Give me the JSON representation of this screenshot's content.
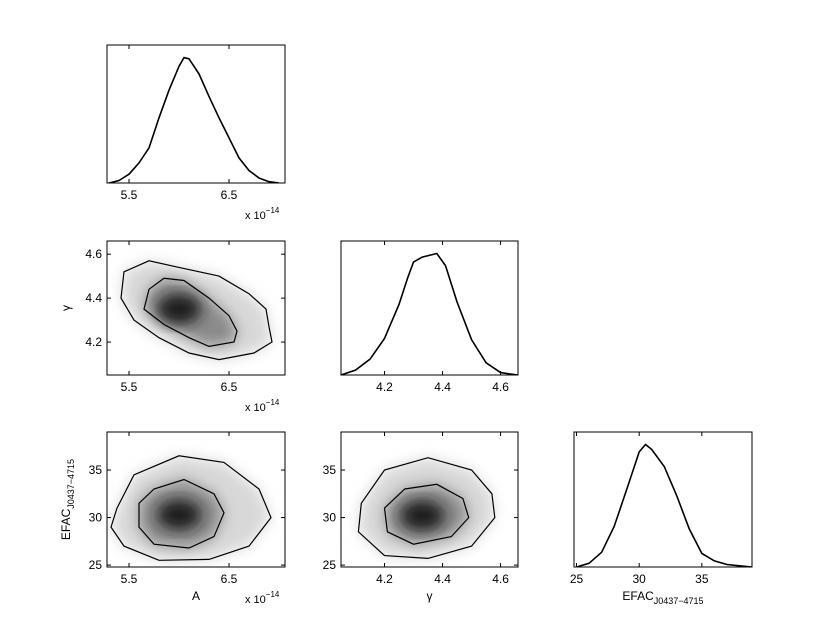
{
  "chart_data": [
    {
      "type": "line",
      "panel": "A-marginal",
      "x": [
        5.3,
        5.4,
        5.5,
        5.6,
        5.7,
        5.8,
        5.9,
        6.0,
        6.05,
        6.1,
        6.2,
        6.3,
        6.4,
        6.5,
        6.6,
        6.7,
        6.8,
        6.9,
        7.0
      ],
      "y": [
        0.0,
        0.02,
        0.07,
        0.16,
        0.28,
        0.52,
        0.74,
        0.93,
        1.0,
        0.99,
        0.87,
        0.69,
        0.52,
        0.36,
        0.2,
        0.1,
        0.04,
        0.01,
        0.0
      ],
      "xlim": [
        5.28,
        7.06
      ],
      "xticks": [
        "5.5",
        "6.5"
      ],
      "xscale_label": "x 10",
      "xscale_exp": "−14"
    },
    {
      "type": "line",
      "panel": "gamma-marginal",
      "x": [
        4.05,
        4.1,
        4.15,
        4.2,
        4.25,
        4.28,
        4.3,
        4.33,
        4.38,
        4.41,
        4.45,
        4.5,
        4.55,
        4.6,
        4.66
      ],
      "y": [
        0.0,
        0.04,
        0.13,
        0.3,
        0.58,
        0.8,
        0.93,
        0.97,
        1.0,
        0.9,
        0.6,
        0.29,
        0.1,
        0.02,
        0.0
      ],
      "xlim": [
        4.05,
        4.66
      ],
      "xticks": [
        "4.2",
        "4.4",
        "4.6"
      ]
    },
    {
      "type": "line",
      "panel": "EFAC-marginal",
      "x": [
        25,
        26,
        27,
        28,
        29,
        30,
        30.5,
        31,
        32,
        33,
        34,
        35,
        36,
        37,
        38,
        39
      ],
      "y": [
        0.0,
        0.03,
        0.12,
        0.33,
        0.63,
        0.94,
        1.0,
        0.96,
        0.82,
        0.58,
        0.31,
        0.11,
        0.05,
        0.02,
        0.01,
        0.0
      ],
      "xlim": [
        24.8,
        39.0
      ],
      "xticks": [
        "25",
        "30",
        "35"
      ],
      "xlabel": "EFAC",
      "xlabel_sub": "J0437−4715"
    },
    {
      "type": "heatmap",
      "panel": "A-vs-gamma",
      "xlim": [
        5.28,
        7.06
      ],
      "ylim": [
        4.05,
        4.66
      ],
      "xticks": [
        "5.5",
        "6.5"
      ],
      "yticks": [
        "4.2",
        "4.4",
        "4.6"
      ],
      "ylabel": "γ",
      "xscale_label": "x 10",
      "xscale_exp": "−14",
      "peak": [
        6.0,
        4.35
      ],
      "inner_contour": [
        [
          5.7,
          4.44
        ],
        [
          5.85,
          4.49
        ],
        [
          6.05,
          4.48
        ],
        [
          6.3,
          4.4
        ],
        [
          6.5,
          4.32
        ],
        [
          6.58,
          4.25
        ],
        [
          6.55,
          4.2
        ],
        [
          6.3,
          4.18
        ],
        [
          6.1,
          4.22
        ],
        [
          5.85,
          4.28
        ],
        [
          5.65,
          4.35
        ]
      ],
      "outer_contour": [
        [
          5.45,
          4.52
        ],
        [
          5.7,
          4.57
        ],
        [
          6.0,
          4.54
        ],
        [
          6.4,
          4.5
        ],
        [
          6.7,
          4.42
        ],
        [
          6.87,
          4.35
        ],
        [
          6.9,
          4.27
        ],
        [
          6.93,
          4.2
        ],
        [
          6.75,
          4.15
        ],
        [
          6.4,
          4.12
        ],
        [
          6.1,
          4.15
        ],
        [
          5.8,
          4.22
        ],
        [
          5.55,
          4.3
        ],
        [
          5.42,
          4.4
        ]
      ]
    },
    {
      "type": "heatmap",
      "panel": "A-vs-EFAC",
      "xlim": [
        5.28,
        7.06
      ],
      "ylim": [
        24.8,
        39.0
      ],
      "xticks": [
        "5.5",
        "6.5"
      ],
      "yticks": [
        "25",
        "30",
        "35"
      ],
      "xlabel": "A",
      "ylabel": "EFAC",
      "ylabel_sub": "J0437−4715",
      "xscale_label": "x 10",
      "xscale_exp": "−14",
      "peak": [
        6.0,
        30.3
      ],
      "inner_contour": [
        [
          5.6,
          31.5
        ],
        [
          5.75,
          33.0
        ],
        [
          6.05,
          34.0
        ],
        [
          6.35,
          32.5
        ],
        [
          6.45,
          30.5
        ],
        [
          6.35,
          28.0
        ],
        [
          6.1,
          26.8
        ],
        [
          5.75,
          27.2
        ],
        [
          5.6,
          29.0
        ]
      ],
      "outer_contour": [
        [
          5.38,
          31.0
        ],
        [
          5.55,
          34.5
        ],
        [
          6.0,
          36.5
        ],
        [
          6.45,
          35.8
        ],
        [
          6.8,
          33.0
        ],
        [
          6.92,
          30.0
        ],
        [
          6.7,
          27.0
        ],
        [
          6.3,
          25.6
        ],
        [
          5.8,
          25.5
        ],
        [
          5.45,
          27.0
        ],
        [
          5.32,
          29.0
        ]
      ]
    },
    {
      "type": "heatmap",
      "panel": "gamma-vs-EFAC",
      "xlim": [
        4.05,
        4.66
      ],
      "ylim": [
        24.8,
        39.0
      ],
      "xticks": [
        "4.2",
        "4.4",
        "4.6"
      ],
      "yticks": [
        "25",
        "30",
        "35"
      ],
      "xlabel": "γ",
      "peak": [
        4.33,
        30.2
      ],
      "inner_contour": [
        [
          4.2,
          31.0
        ],
        [
          4.27,
          33.0
        ],
        [
          4.38,
          33.5
        ],
        [
          4.47,
          32.0
        ],
        [
          4.49,
          30.0
        ],
        [
          4.43,
          28.0
        ],
        [
          4.3,
          27.2
        ],
        [
          4.21,
          28.5
        ]
      ],
      "outer_contour": [
        [
          4.12,
          31.5
        ],
        [
          4.2,
          35.0
        ],
        [
          4.35,
          36.3
        ],
        [
          4.5,
          35.0
        ],
        [
          4.57,
          32.5
        ],
        [
          4.58,
          30.0
        ],
        [
          4.5,
          27.0
        ],
        [
          4.35,
          25.7
        ],
        [
          4.2,
          26.0
        ],
        [
          4.11,
          28.5
        ]
      ]
    }
  ]
}
